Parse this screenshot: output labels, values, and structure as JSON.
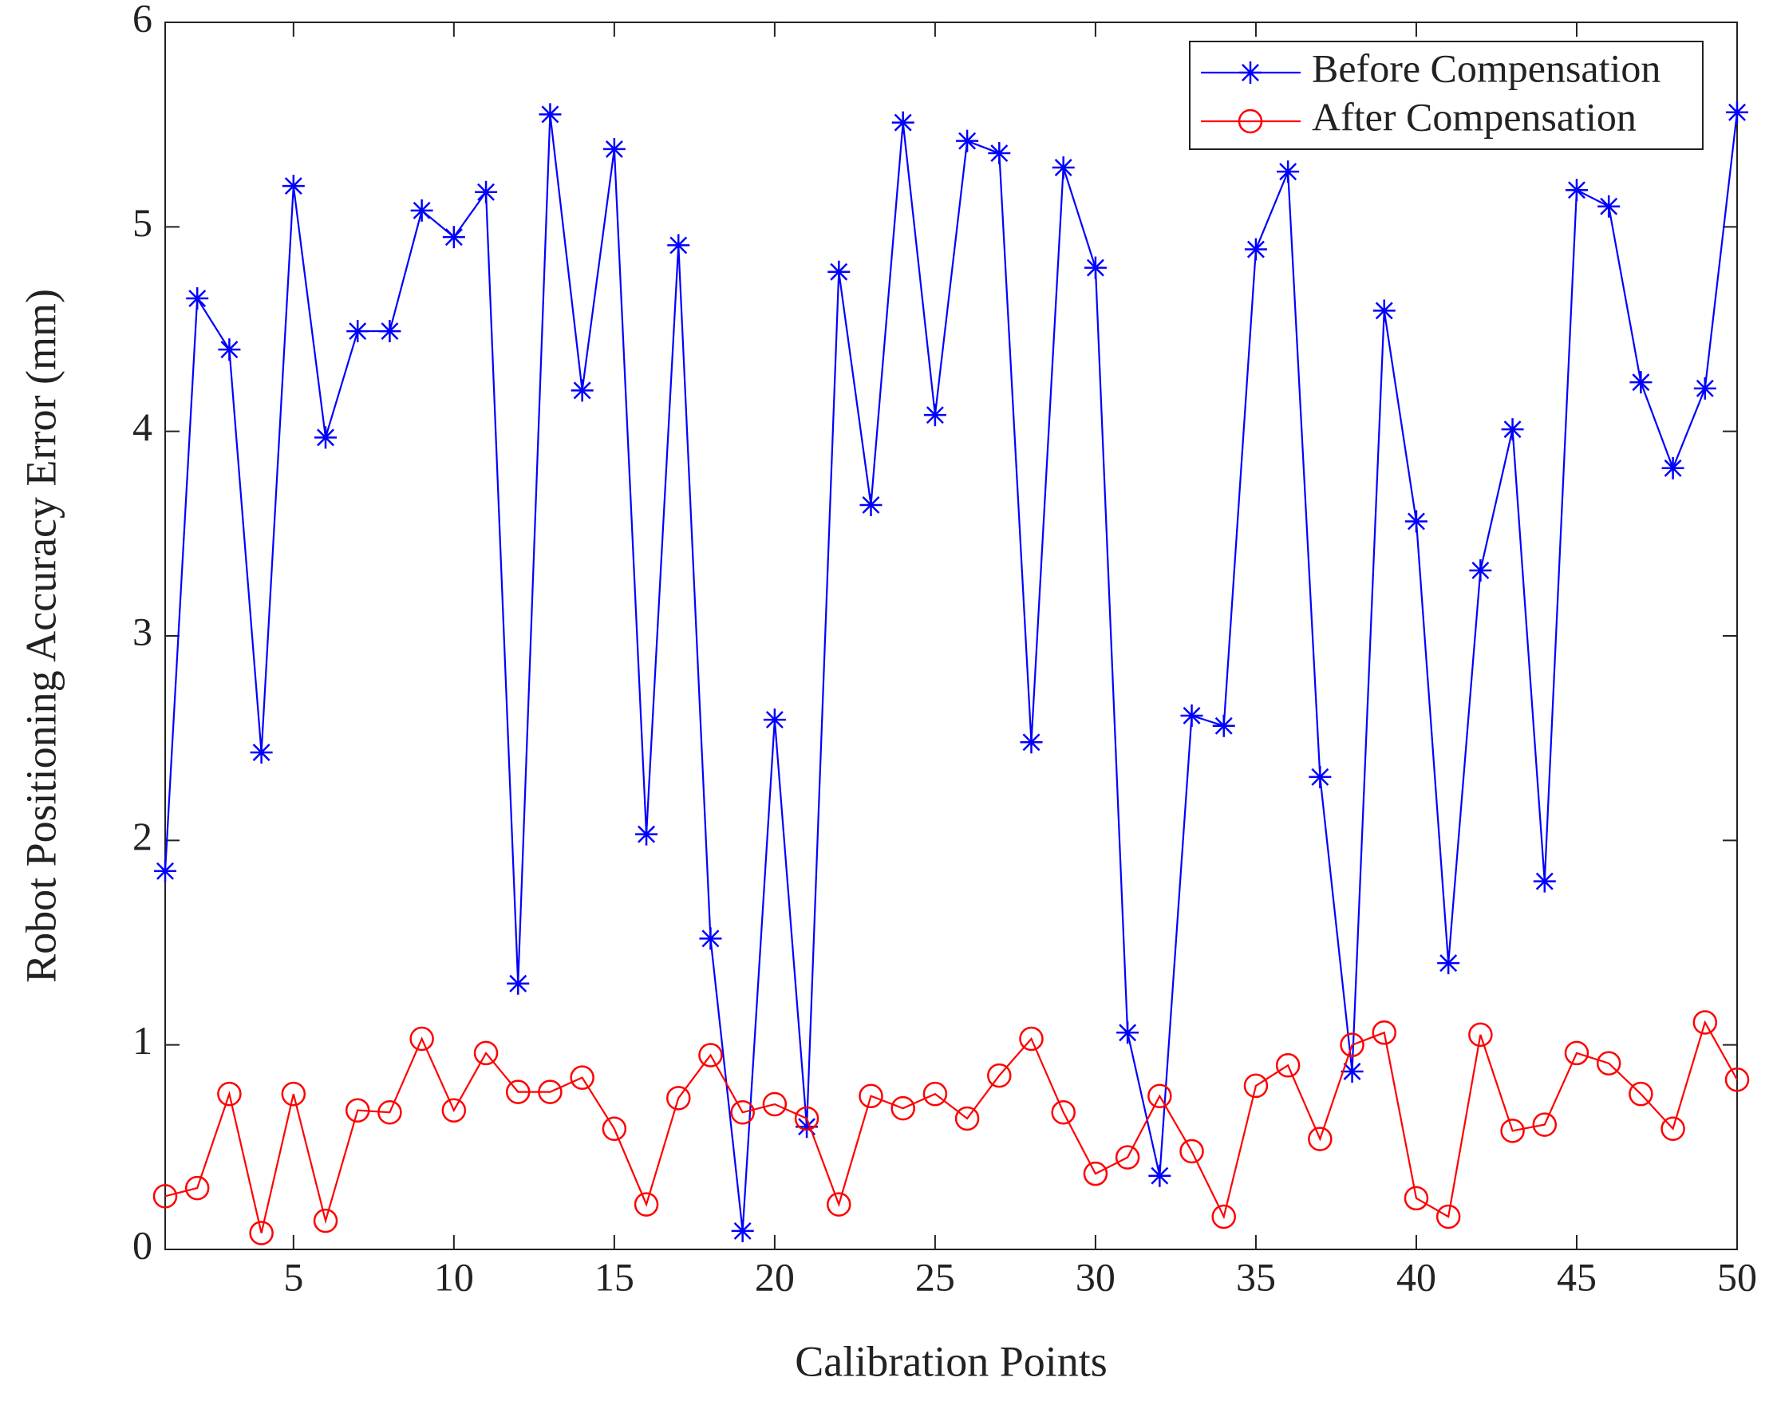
{
  "chart_data": {
    "type": "line",
    "xlabel": "Calibration Points",
    "ylabel": "Robot Positioning Accuracy Error (mm)",
    "x": [
      1,
      2,
      3,
      4,
      5,
      6,
      7,
      8,
      9,
      10,
      11,
      12,
      13,
      14,
      15,
      16,
      17,
      18,
      19,
      20,
      21,
      22,
      23,
      24,
      25,
      26,
      27,
      28,
      29,
      30,
      31,
      32,
      33,
      34,
      35,
      36,
      37,
      38,
      39,
      40,
      41,
      42,
      43,
      44,
      45,
      46,
      47,
      48,
      49,
      50
    ],
    "series": [
      {
        "name": "Before Compensation",
        "color": "#0000ff",
        "marker": "asterisk",
        "values": [
          1.85,
          4.65,
          4.4,
          2.43,
          5.2,
          3.97,
          4.49,
          4.49,
          5.08,
          4.95,
          5.17,
          1.3,
          5.55,
          4.2,
          5.38,
          2.03,
          4.91,
          1.52,
          0.09,
          2.59,
          0.6,
          4.78,
          3.64,
          5.51,
          4.08,
          5.42,
          5.36,
          2.48,
          5.29,
          4.8,
          1.06,
          0.36,
          2.61,
          2.56,
          4.89,
          5.27,
          2.31,
          0.87,
          4.59,
          3.56,
          1.4,
          3.32,
          4.01,
          1.8,
          5.18,
          5.1,
          4.24,
          3.82,
          4.21,
          5.56
        ]
      },
      {
        "name": "After Compensation",
        "color": "#ff0000",
        "marker": "circle",
        "values": [
          0.26,
          0.3,
          0.76,
          0.08,
          0.76,
          0.14,
          0.68,
          0.67,
          1.03,
          0.68,
          0.96,
          0.77,
          0.77,
          0.84,
          0.59,
          0.22,
          0.74,
          0.95,
          0.67,
          0.71,
          0.64,
          0.22,
          0.75,
          0.69,
          0.76,
          0.64,
          0.85,
          1.03,
          0.67,
          0.37,
          0.45,
          0.75,
          0.48,
          0.16,
          0.8,
          0.9,
          0.54,
          1.0,
          1.06,
          0.25,
          0.16,
          1.05,
          0.58,
          0.61,
          0.96,
          0.91,
          0.76,
          0.59,
          1.11,
          0.83
        ]
      }
    ],
    "xlim": [
      1,
      50
    ],
    "xticks": [
      5,
      10,
      15,
      20,
      25,
      30,
      35,
      40,
      45,
      50
    ],
    "ylim": [
      0,
      6
    ],
    "yticks": [
      0,
      1,
      2,
      3,
      4,
      5,
      6
    ],
    "grid": false,
    "legend": "upper right"
  }
}
